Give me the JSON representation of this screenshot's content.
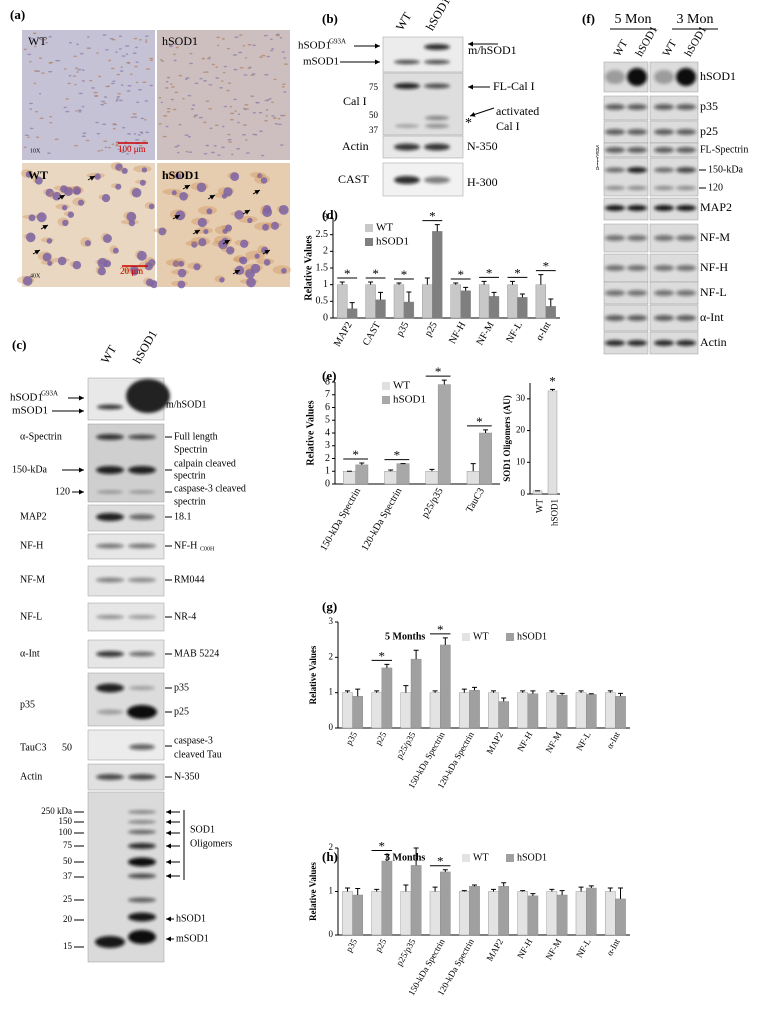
{
  "panels": {
    "a": {
      "label": "(a)",
      "top_left": "WT",
      "top_right": "hSOD1",
      "magnification_top": "10X",
      "scale_top": "100 μm",
      "bottom_left": "WT",
      "bottom_right": "hSOD1",
      "magnification_bottom": "40X",
      "scale_bottom": "20 μm"
    },
    "b": {
      "label": "(b)",
      "lanes": [
        "WT",
        "hSOD1"
      ],
      "hsod1": "hSOD1",
      "hsod1_sup": "G93A",
      "msod1": "mSOD1",
      "cal": "Cal I",
      "markers": [
        "75",
        "50",
        "37"
      ],
      "actin": "Actin",
      "cast": "CAST",
      "mh": "m/hSOD1",
      "fl": "FL-Cal I",
      "activated": [
        "activated",
        "Cal I"
      ],
      "star": "*",
      "n350": "N-350",
      "h300": "H-300"
    },
    "c": {
      "label": "(c)",
      "lanes": [
        "WT",
        "hSOD1"
      ],
      "hsod1": "hSOD1",
      "hsod1_sup": "G93A",
      "msod1": "mSOD1",
      "mh": "m/hSOD1",
      "rows": [
        "α-Spectrin",
        "150-kDa",
        "120",
        "MAP2",
        "NF-H",
        "NF-M",
        "NF-L",
        "α-Int",
        "p35",
        "TauC3",
        "50",
        "Actin"
      ],
      "right": [
        "Full length",
        "Spectrin",
        "calpain cleaved",
        "spectrin",
        "caspase-3 cleaved",
        "spectrin",
        "18.1",
        "NF-H",
        "C00H",
        "RM044",
        "NR-4",
        "MAB 5224",
        "p35",
        "p25",
        "caspase-3",
        "cleaved Tau",
        "N-350"
      ],
      "markers": [
        "250 kDa",
        "150",
        "100",
        "75",
        "50",
        "37",
        "25",
        "20",
        "15"
      ],
      "oligomers": [
        "SOD1",
        "Oligomers"
      ],
      "bottom": [
        "hSOD1",
        "mSOD1"
      ]
    },
    "f": {
      "label": "(f)",
      "groups": [
        "5 Mon",
        "3 Mon"
      ],
      "lanes": [
        "WT",
        "hSOD1",
        "WT",
        "hSOD1"
      ],
      "spectrin": "Spectrin",
      "rows": [
        "hSOD1",
        "p35",
        "p25",
        "FL-Spectrin",
        "150-kDa",
        "120",
        "MAP2",
        "NF-M",
        "NF-H",
        "NF-L",
        "α-Int",
        "Actin"
      ]
    },
    "labels": [
      "(d)",
      "(e)",
      "(g)",
      "(h)"
    ]
  },
  "chart_data": [
    {
      "type": "bar",
      "y_label": "Relative Values",
      "categories": [
        "MAP2",
        "CAST",
        "p35",
        "p25",
        "NF-H",
        "NF-M",
        "NF-L",
        "α-Int"
      ],
      "series": [
        {
          "name": "WT",
          "color": "#c8c8c8",
          "values": [
            1,
            1,
            1,
            1,
            1,
            1,
            1,
            1
          ],
          "errors": [
            0.08,
            0.08,
            0.05,
            0.2,
            0.05,
            0.1,
            0.1,
            0.3
          ]
        },
        {
          "name": "hSOD1",
          "color": "#7f7f7f",
          "values": [
            0.28,
            0.55,
            0.48,
            2.6,
            0.82,
            0.65,
            0.62,
            0.35
          ],
          "errors": [
            0.18,
            0.22,
            0.3,
            0.2,
            0.1,
            0.12,
            0.1,
            0.22
          ]
        }
      ],
      "significance": [
        "*",
        "*",
        "*",
        "*",
        "*",
        "*",
        "*",
        "*"
      ],
      "ylim": [
        0,
        3
      ],
      "yticks": [
        0,
        0.5,
        1,
        1.5,
        2,
        2.5,
        3
      ]
    },
    {
      "type": "bar",
      "y_label": "Relative Values",
      "categories": [
        "150-kDa Spectrin",
        "120-kDa Spectrin",
        "p25/p35",
        "TauC3"
      ],
      "series": [
        {
          "name": "WT",
          "color": "#e0e0e0",
          "values": [
            1,
            1,
            1,
            1
          ],
          "errors": [
            0,
            0.1,
            0.15,
            0.6
          ]
        },
        {
          "name": "hSOD1",
          "color": "#a8a8a8",
          "values": [
            1.5,
            1.6,
            7.8,
            4
          ],
          "errors": [
            0.15,
            0,
            0.35,
            0.25
          ]
        }
      ],
      "significance": [
        "*",
        "*",
        "*",
        "*"
      ],
      "ylim": [
        0,
        8
      ],
      "yticks": [
        0,
        1,
        2,
        3,
        4,
        5,
        6,
        7,
        8
      ]
    },
    {
      "type": "bar",
      "y_label": "SOD1 Oligomers (AU)",
      "categories": [
        "WT",
        "hSOD1"
      ],
      "color": "#e0e0e0",
      "values": [
        1,
        32.5
      ],
      "errors": [
        0,
        0.5
      ],
      "significance": [
        null,
        "*"
      ],
      "ylim": [
        0,
        35
      ],
      "yticks": [
        0,
        10,
        20,
        30
      ]
    },
    {
      "type": "bar",
      "title": "5 Months",
      "y_label": "Relative Values",
      "categories": [
        "p35",
        "p25",
        "p25/p35",
        "150-kDa Spectrin",
        "120-kDa Spectrin",
        "MAP2",
        "NF-H",
        "NF-M",
        "NF-L",
        "α-Int"
      ],
      "series": [
        {
          "name": "WT",
          "color": "#e3e3e3",
          "values": [
            1,
            1,
            1,
            1,
            1,
            1,
            1,
            1,
            1,
            1
          ],
          "errors": [
            0.05,
            0.05,
            0.2,
            0.05,
            0.1,
            0.05,
            0.05,
            0.05,
            0.05,
            0.05
          ]
        },
        {
          "name": "hSOD1",
          "color": "#a0a0a0",
          "values": [
            0.9,
            1.7,
            1.95,
            2.35,
            1.07,
            0.75,
            0.97,
            0.93,
            0.95,
            0.9
          ],
          "errors": [
            0.2,
            0.1,
            0.25,
            0.2,
            0.08,
            0.1,
            0.08,
            0.05,
            0.02,
            0.08
          ]
        }
      ],
      "significance": [
        null,
        "*",
        null,
        "*",
        null,
        null,
        null,
        null,
        null,
        null
      ],
      "ylim": [
        0,
        3
      ],
      "yticks": [
        0,
        1,
        2,
        3
      ]
    },
    {
      "type": "bar",
      "title": "3 Months",
      "y_label": "Relative Values",
      "categories": [
        "p35",
        "p25",
        "p25/p35",
        "150-kDa Spectrin",
        "120-kDa Spectrin",
        "MAP2",
        "NF-H",
        "NF-M",
        "NF-L",
        "α-Int"
      ],
      "series": [
        {
          "name": "WT",
          "color": "#e3e3e3",
          "values": [
            1,
            1,
            1,
            1,
            1,
            1,
            1,
            1,
            1,
            1
          ],
          "errors": [
            0.08,
            0.05,
            0.15,
            0.1,
            0.02,
            0.05,
            0.02,
            0.05,
            0.1,
            0.08
          ]
        },
        {
          "name": "hSOD1",
          "color": "#a0a0a0",
          "values": [
            0.92,
            1.7,
            1.6,
            1.45,
            1.12,
            1.12,
            0.9,
            0.92,
            1.08,
            0.83
          ],
          "errors": [
            0.15,
            0.15,
            0.4,
            0.05,
            0.03,
            0.08,
            0.05,
            0.1,
            0.05,
            0.25
          ]
        }
      ],
      "significance": [
        null,
        "*",
        null,
        "*",
        null,
        null,
        null,
        null,
        null,
        null
      ],
      "ylim": [
        0,
        2
      ],
      "yticks": [
        0,
        1,
        2
      ]
    }
  ]
}
